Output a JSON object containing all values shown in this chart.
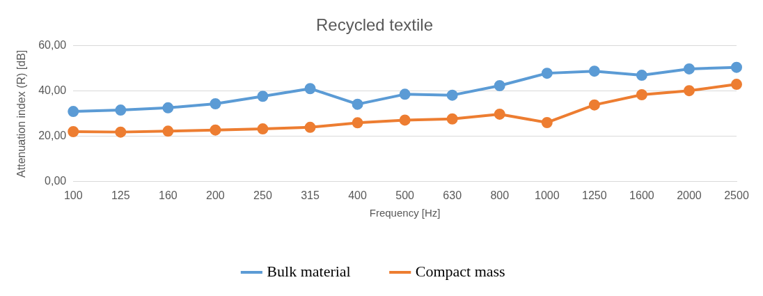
{
  "chart_data": {
    "type": "line",
    "title": "Recycled textile",
    "xlabel": "Frequency [Hz]",
    "ylabel": "Attenuation index (R) [dB]",
    "categories": [
      "100",
      "125",
      "160",
      "200",
      "250",
      "315",
      "400",
      "500",
      "630",
      "800",
      "1000",
      "1250",
      "1600",
      "2000",
      "2500"
    ],
    "series": [
      {
        "name": "Bulk material",
        "color": "#5b9bd5",
        "values": [
          31.0,
          31.6,
          32.6,
          34.4,
          37.7,
          41.1,
          34.2,
          38.6,
          38.2,
          42.4,
          47.9,
          48.8,
          47.0,
          49.8,
          50.5
        ]
      },
      {
        "name": "Compact mass",
        "color": "#ed7d31",
        "values": [
          22.1,
          21.9,
          22.3,
          22.8,
          23.3,
          24.0,
          26.0,
          27.2,
          27.7,
          29.8,
          26.1,
          33.9,
          38.4,
          40.2,
          43.0
        ]
      }
    ],
    "ylim": [
      0,
      60
    ],
    "yticks": [
      {
        "value": 0,
        "label": "0,00"
      },
      {
        "value": 20,
        "label": "20,00"
      },
      {
        "value": 40,
        "label": "40,00"
      },
      {
        "value": 60,
        "label": "60,00"
      }
    ],
    "grid": "y",
    "legend": "bottom",
    "marker": "circle",
    "line_style": "solid"
  }
}
